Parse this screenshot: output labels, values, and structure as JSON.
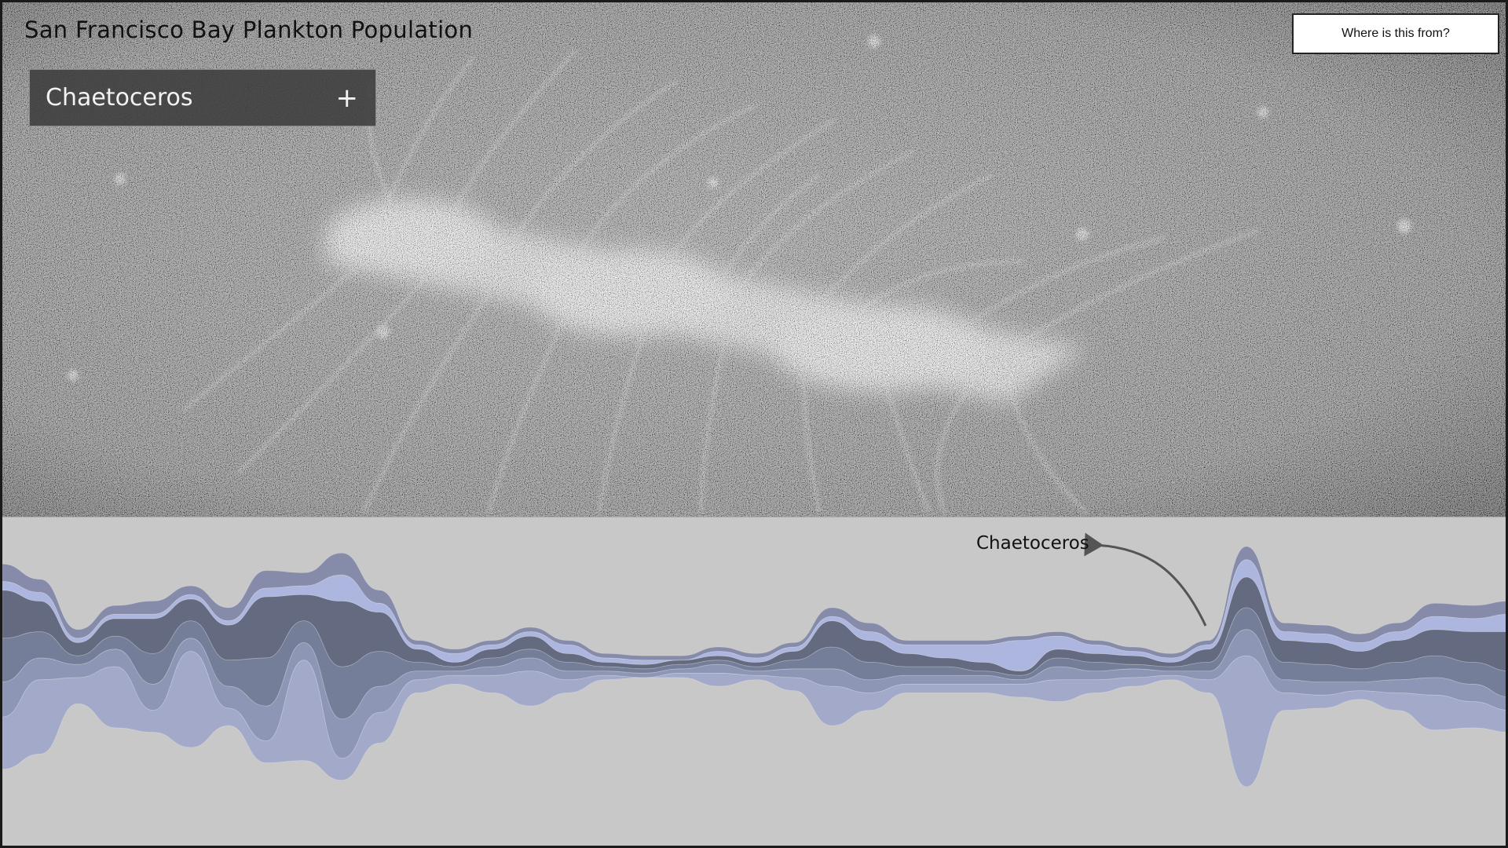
{
  "page": {
    "title": "San Francisco Bay Plankton Population"
  },
  "selector": {
    "label": "Chaetoceros",
    "plus_glyph": "+",
    "icon": "plus-icon"
  },
  "source_button": {
    "label": "Where is this from?"
  },
  "annotation": {
    "label": "Chaetoceros",
    "icon": "arrow-icon"
  },
  "colors": {
    "photo_bg": "#7c7c7c",
    "stream_bg": "#c8c8c8",
    "series": [
      "#9ea6c9",
      "#8891b3",
      "#6e7795",
      "#5b6278",
      "#a9b4df",
      "#7f86a6"
    ]
  },
  "chart_data": {
    "type": "area",
    "x": [
      0,
      1,
      2,
      3,
      4,
      5,
      6,
      7,
      8,
      9,
      10,
      11,
      12,
      13,
      14,
      15,
      16,
      17,
      18,
      19,
      20,
      21,
      22,
      23,
      24,
      25,
      26,
      27,
      28,
      29,
      30,
      31,
      32,
      33,
      34,
      35,
      36,
      37,
      38,
      39,
      40
    ],
    "series": [
      {
        "values": [
          12,
          17,
          6,
          14,
          5,
          22,
          4,
          5,
          23,
          5,
          7,
          3,
          2,
          4,
          8,
          3,
          1,
          0,
          1,
          3,
          1,
          3,
          9,
          4,
          2,
          2,
          2,
          3,
          5,
          3,
          2,
          1,
          3,
          30,
          4,
          3,
          2,
          4,
          8,
          6,
          5
        ]
      },
      {
        "values": [
          8,
          5,
          3,
          4,
          6,
          3,
          5,
          8,
          4,
          9,
          6,
          2,
          1,
          2,
          3,
          2,
          1,
          1,
          1,
          2,
          1,
          2,
          4,
          3,
          2,
          2,
          2,
          1,
          3,
          2,
          2,
          1,
          2,
          6,
          3,
          3,
          2,
          3,
          4,
          4,
          3
        ]
      },
      {
        "values": [
          10,
          6,
          2,
          3,
          7,
          4,
          6,
          11,
          5,
          12,
          8,
          2,
          1,
          2,
          2,
          2,
          1,
          1,
          1,
          1,
          1,
          2,
          5,
          4,
          2,
          2,
          1,
          1,
          2,
          2,
          1,
          1,
          2,
          5,
          4,
          4,
          3,
          4,
          5,
          5,
          6
        ]
      },
      {
        "values": [
          11,
          7,
          3,
          4,
          8,
          5,
          8,
          14,
          6,
          15,
          9,
          3,
          1,
          2,
          3,
          2,
          1,
          1,
          1,
          1,
          1,
          2,
          6,
          5,
          3,
          2,
          2,
          1,
          2,
          2,
          2,
          1,
          3,
          7,
          5,
          5,
          4,
          5,
          6,
          7,
          9
        ]
      },
      {
        "values": [
          2,
          2,
          1,
          1,
          1,
          1,
          1,
          2,
          2,
          6,
          2,
          1,
          2,
          1,
          1,
          2,
          1,
          1,
          0,
          1,
          1,
          1,
          1,
          2,
          2,
          3,
          4,
          7,
          3,
          2,
          1,
          1,
          1,
          4,
          2,
          2,
          2,
          2,
          3,
          3,
          4
        ]
      },
      {
        "values": [
          4,
          3,
          2,
          2,
          3,
          2,
          3,
          4,
          3,
          5,
          3,
          1,
          1,
          1,
          1,
          1,
          1,
          1,
          1,
          1,
          1,
          1,
          2,
          2,
          1,
          1,
          1,
          1,
          1,
          1,
          1,
          1,
          1,
          3,
          2,
          2,
          2,
          2,
          3,
          3,
          3
        ]
      }
    ]
  }
}
